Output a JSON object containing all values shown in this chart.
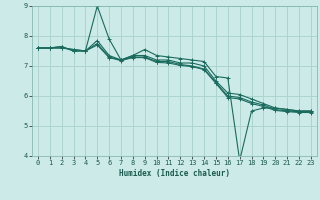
{
  "xlabel": "Humidex (Indice chaleur)",
  "bg_color": "#cceae7",
  "grid_color": "#aed4d0",
  "line_color": "#1a6b5e",
  "xlim": [
    -0.5,
    23.5
  ],
  "ylim": [
    4,
    9
  ],
  "yticks": [
    4,
    5,
    6,
    7,
    8,
    9
  ],
  "xticks": [
    0,
    1,
    2,
    3,
    4,
    5,
    6,
    7,
    8,
    9,
    10,
    11,
    12,
    13,
    14,
    15,
    16,
    17,
    18,
    19,
    20,
    21,
    22,
    23
  ],
  "series": [
    {
      "x": [
        0,
        1,
        2,
        3,
        4,
        5,
        6,
        7,
        8,
        9,
        10,
        11,
        12,
        13,
        14,
        15,
        16,
        17,
        18,
        19,
        20,
        21,
        22,
        23
      ],
      "y": [
        7.6,
        7.6,
        7.65,
        7.5,
        7.5,
        9.0,
        7.9,
        7.2,
        7.35,
        7.55,
        7.35,
        7.3,
        7.25,
        7.2,
        7.15,
        6.65,
        6.6,
        3.85,
        5.5,
        5.6,
        5.6,
        5.55,
        5.5,
        5.5
      ]
    },
    {
      "x": [
        0,
        1,
        2,
        3,
        4,
        5,
        6,
        7,
        8,
        9,
        10,
        11,
        12,
        13,
        14,
        15,
        16,
        17,
        18,
        19,
        20,
        21,
        22,
        23
      ],
      "y": [
        7.6,
        7.6,
        7.65,
        7.5,
        7.5,
        7.85,
        7.35,
        7.2,
        7.35,
        7.35,
        7.2,
        7.2,
        7.1,
        7.1,
        7.0,
        6.5,
        6.1,
        6.05,
        5.9,
        5.75,
        5.6,
        5.55,
        5.5,
        5.5
      ]
    },
    {
      "x": [
        0,
        1,
        2,
        3,
        4,
        5,
        6,
        7,
        8,
        9,
        10,
        11,
        12,
        13,
        14,
        15,
        16,
        17,
        18,
        19,
        20,
        21,
        22,
        23
      ],
      "y": [
        7.6,
        7.6,
        7.6,
        7.55,
        7.5,
        7.75,
        7.3,
        7.2,
        7.3,
        7.3,
        7.15,
        7.15,
        7.05,
        7.0,
        6.9,
        6.45,
        6.0,
        5.95,
        5.8,
        5.7,
        5.55,
        5.5,
        5.48,
        5.48
      ]
    },
    {
      "x": [
        0,
        1,
        2,
        3,
        4,
        5,
        6,
        7,
        8,
        9,
        10,
        11,
        12,
        13,
        14,
        15,
        16,
        17,
        18,
        19,
        20,
        21,
        22,
        23
      ],
      "y": [
        7.6,
        7.6,
        7.6,
        7.55,
        7.5,
        7.7,
        7.28,
        7.18,
        7.28,
        7.28,
        7.12,
        7.1,
        7.02,
        6.98,
        6.88,
        6.42,
        5.95,
        5.9,
        5.75,
        5.65,
        5.52,
        5.48,
        5.45,
        5.45
      ]
    }
  ]
}
